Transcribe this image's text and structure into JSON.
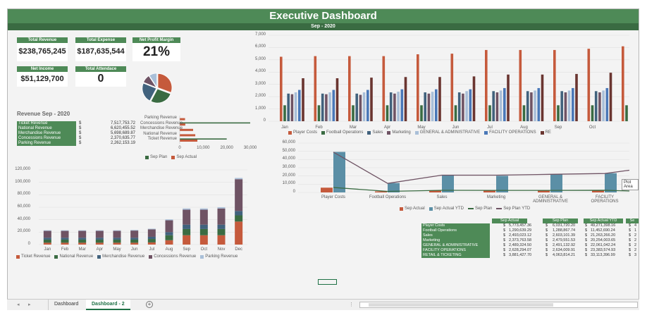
{
  "dashboard": {
    "title": "Executive Dashboard",
    "period": "Sep - 2020"
  },
  "kpis": {
    "total_revenue": {
      "label": "Total Revenue",
      "value": "$238,765,245"
    },
    "total_expense": {
      "label": "Total Expense",
      "value": "$187,635,544"
    },
    "net_profit_margin": {
      "label": "Net Profit Margin",
      "value": "21%"
    },
    "net_income": {
      "label": "Net Income",
      "value": "$51,129,700"
    },
    "total_attendance": {
      "label": "Total Attendace",
      "value": "0"
    }
  },
  "revenue_section": {
    "title": "Revenue Sep - 2020",
    "rows": [
      {
        "name": "Ticket Revenue",
        "cur": "$",
        "value": "7,517,753.72"
      },
      {
        "name": "National Revenue",
        "cur": "$",
        "value": "6,620,455.52"
      },
      {
        "name": "Merchandise Revenue",
        "cur": "$",
        "value": "5,698,689.87"
      },
      {
        "name": "Concessions Revenue",
        "cur": "$",
        "value": "2,370,635.77"
      },
      {
        "name": "Parking Revenue",
        "cur": "$",
        "value": "2,262,153.19"
      }
    ]
  },
  "colors": {
    "green": "#4e8a57",
    "dark_green": "#3a6b42",
    "orange": "#c55a3c",
    "teal": "#5b8fa6",
    "blue_dark": "#41627d",
    "plum": "#6f5364",
    "light_blue": "#a9bfd8",
    "brown": "#6a3530",
    "grey": "#808080"
  },
  "charts": {
    "pie": {
      "type": "pie",
      "values": [
        7517753.72,
        6620455.52,
        5698689.87,
        2370635.77,
        2262153.19
      ],
      "colors": [
        "#c55a3c",
        "#3a6b42",
        "#41627d",
        "#6f5364",
        "#a9bfd8"
      ]
    },
    "plan_vs_actual": {
      "type": "bar",
      "categories": [
        "Parking Revenue",
        "Concessions Revenue",
        "Merchandise Revenue",
        "National Revenue",
        "Ticket Revenue"
      ],
      "series": [
        {
          "name": "Sep Plan",
          "values": [
            0,
            30000,
            0,
            0,
            20000
          ]
        },
        {
          "name": "Sep Actual",
          "values": [
            2262,
            2371,
            5699,
            6620,
            7518
          ]
        }
      ],
      "xticks": [
        "0",
        "10,000",
        "20,000",
        "30,000"
      ],
      "xlim": [
        0,
        30000
      ]
    },
    "monthly_expense": {
      "type": "bar",
      "categories": [
        "Jan",
        "Feb",
        "Mar",
        "Apr",
        "May",
        "Jun",
        "Jul",
        "Aug",
        "Sep",
        "Oct"
      ],
      "yticks": [
        "7,000",
        "6,000",
        "5,000",
        "4,000",
        "3,000",
        "2,000",
        "1,000",
        "0"
      ],
      "ylim": [
        0,
        7000
      ],
      "series": [
        {
          "name": "Player Costs",
          "color": "#c55a3c",
          "values": [
            5250,
            5300,
            5300,
            5300,
            5450,
            5500,
            5800,
            5800,
            5800,
            5900
          ]
        },
        {
          "name": "Football Operations",
          "color": "#3a6b42",
          "values": [
            1300,
            1300,
            1300,
            1300,
            1300,
            1300,
            1300,
            1300,
            1300,
            1300
          ]
        },
        {
          "name": "Sales",
          "color": "#41627d",
          "values": [
            2250,
            2250,
            2250,
            2350,
            2350,
            2350,
            2450,
            2450,
            2450,
            2450
          ]
        },
        {
          "name": "Marketing",
          "color": "#6f5364",
          "values": [
            2200,
            2200,
            2150,
            2250,
            2250,
            2250,
            2350,
            2350,
            2350,
            2350
          ]
        },
        {
          "name": "GENERAL & ADMINISTRATIVE",
          "color": "#a9bfd8",
          "values": [
            2350,
            2350,
            2350,
            2400,
            2400,
            2450,
            2500,
            2500,
            2500,
            2500
          ]
        },
        {
          "name": "FACILITY OPERATIONS",
          "color": "#4a78b8",
          "values": [
            2550,
            2550,
            2550,
            2600,
            2600,
            2600,
            2700,
            2700,
            2700,
            2700
          ]
        },
        {
          "name": "RE",
          "color": "#6a3530",
          "values": [
            3500,
            3500,
            3550,
            3600,
            3600,
            3650,
            3800,
            3800,
            3850,
            3950
          ]
        }
      ],
      "legend": [
        "Player Costs",
        "Football Operations",
        "Sales",
        "Marketing",
        "GENERAL & ADMINISTRATIVE",
        "FACILITY OPERATIONS",
        "RE"
      ]
    },
    "ytd_chart": {
      "type": "bar",
      "categories": [
        "Player Costs",
        "Football Operations",
        "Sales",
        "Marketing",
        "GENERAL & ADMINISTRATIVE",
        "FACILITY OPERATIONS"
      ],
      "yticks": [
        "60,000",
        "50,000",
        "40,000",
        "30,000",
        "20,000",
        "10,000",
        "0"
      ],
      "ylim": [
        0,
        60000
      ],
      "series": [
        {
          "name": "Sep Actual",
          "type": "bar",
          "color": "#c55a3c",
          "values": [
            5774,
            1291,
            2494,
            2374,
            2489,
            2628
          ]
        },
        {
          "name": "Sep Actual YTD",
          "type": "bar",
          "color": "#5b8fa6",
          "values": [
            49271,
            11453,
            21263,
            20254,
            22061,
            23383
          ]
        },
        {
          "name": "Sep Plan",
          "type": "line",
          "color": "#3a6b42",
          "values": [
            6031,
            1289,
            2603,
            2480,
            2491,
            2634
          ]
        },
        {
          "name": "Sep Plan YTD",
          "type": "line",
          "color": "#6f5364",
          "values": [
            49000,
            11000,
            21000,
            21000,
            22000,
            23000
          ]
        }
      ]
    },
    "monthly_revenue": {
      "type": "bar",
      "categories": [
        "Jan",
        "Feb",
        "Mar",
        "Apr",
        "May",
        "Jun",
        "Jul",
        "Aug",
        "Sep",
        "Oct",
        "Nov",
        "Dec"
      ],
      "yticks": [
        "120,000",
        "100,000",
        "80,000",
        "60,000",
        "40,000",
        "20,000",
        "0"
      ],
      "ylim": [
        0,
        120000
      ],
      "series": [
        {
          "name": "Ticket Revenue",
          "color": "#c55a3c",
          "values": [
            3000,
            3000,
            3000,
            3000,
            3000,
            3000,
            3500,
            7000,
            15000,
            15000,
            15000,
            37000
          ]
        },
        {
          "name": "National Revenue",
          "color": "#3a6b42",
          "values": [
            5000,
            5000,
            5000,
            5000,
            5000,
            5000,
            5500,
            8000,
            10000,
            10000,
            10000,
            10000
          ]
        },
        {
          "name": "Merchandise Revenue",
          "color": "#41627d",
          "values": [
            3000,
            3000,
            3000,
            3000,
            3000,
            3000,
            3500,
            5000,
            7000,
            7000,
            7000,
            7000
          ]
        },
        {
          "name": "Concessions Revenue",
          "color": "#6f5364",
          "values": [
            11000,
            11000,
            11000,
            11000,
            11000,
            11500,
            12000,
            19000,
            24000,
            24000,
            26000,
            51000
          ]
        },
        {
          "name": "Parking Revenue",
          "color": "#a9bfd8",
          "values": [
            1000,
            1000,
            1000,
            1000,
            1000,
            1000,
            1000,
            1500,
            2000,
            2000,
            2000,
            2000
          ]
        }
      ]
    }
  },
  "sep_table": {
    "headers": [
      "Sep Actual",
      "Sep Plan",
      "Sep Actual YTD",
      "Se"
    ],
    "rows": [
      {
        "name": "Player Costs",
        "c1": "$",
        "v1": "5,773,457.36",
        "c2": "$",
        "v2": "6,031,720.20",
        "c3": "$",
        "v3": "49,271,398.16",
        "c4": "$",
        "v4": "4"
      },
      {
        "name": "Football Operations",
        "c1": "$",
        "v1": "1,290,639.29",
        "c2": "$",
        "v2": "1,288,867.74",
        "c3": "$",
        "v3": "11,452,690.24",
        "c4": "$",
        "v4": "1"
      },
      {
        "name": "Sales",
        "c1": "$",
        "v1": "2,493,023.12",
        "c2": "$",
        "v2": "2,603,101.39",
        "c3": "$",
        "v3": "21,263,266.20",
        "c4": "$",
        "v4": "2"
      },
      {
        "name": "Marketing",
        "c1": "$",
        "v1": "2,373,763.58",
        "c2": "$",
        "v2": "2,479,551.53",
        "c3": "$",
        "v3": "20,254,003.65",
        "c4": "$",
        "v4": "2"
      },
      {
        "name": "GENERAL & ADMINISTRATIVE",
        "c1": "$",
        "v1": "2,489,324.50",
        "c2": "$",
        "v2": "2,491,132.92",
        "c3": "$",
        "v3": "22,061,042.24",
        "c4": "$",
        "v4": "2"
      },
      {
        "name": "FACILITY OPERATIONS",
        "c1": "$",
        "v1": "2,628,294.07",
        "c2": "$",
        "v2": "2,634,009.91",
        "c3": "$",
        "v3": "23,383,574.93",
        "c4": "$",
        "v4": "2"
      },
      {
        "name": "RETAIL & TICKETING",
        "c1": "$",
        "v1": "3,881,427.70",
        "c2": "$",
        "v2": "4,063,814.21",
        "c3": "$",
        "v3": "33,113,396.99",
        "c4": "$",
        "v4": "3"
      }
    ]
  },
  "tooltip": "Plot Area",
  "sheet_tabs": [
    {
      "label": "Dashboard",
      "active": false
    },
    {
      "label": "Dashboard - 2",
      "active": true
    }
  ],
  "nav": {
    "prev": "◂",
    "next": "▸",
    "add": "+",
    "options": "⋮"
  }
}
